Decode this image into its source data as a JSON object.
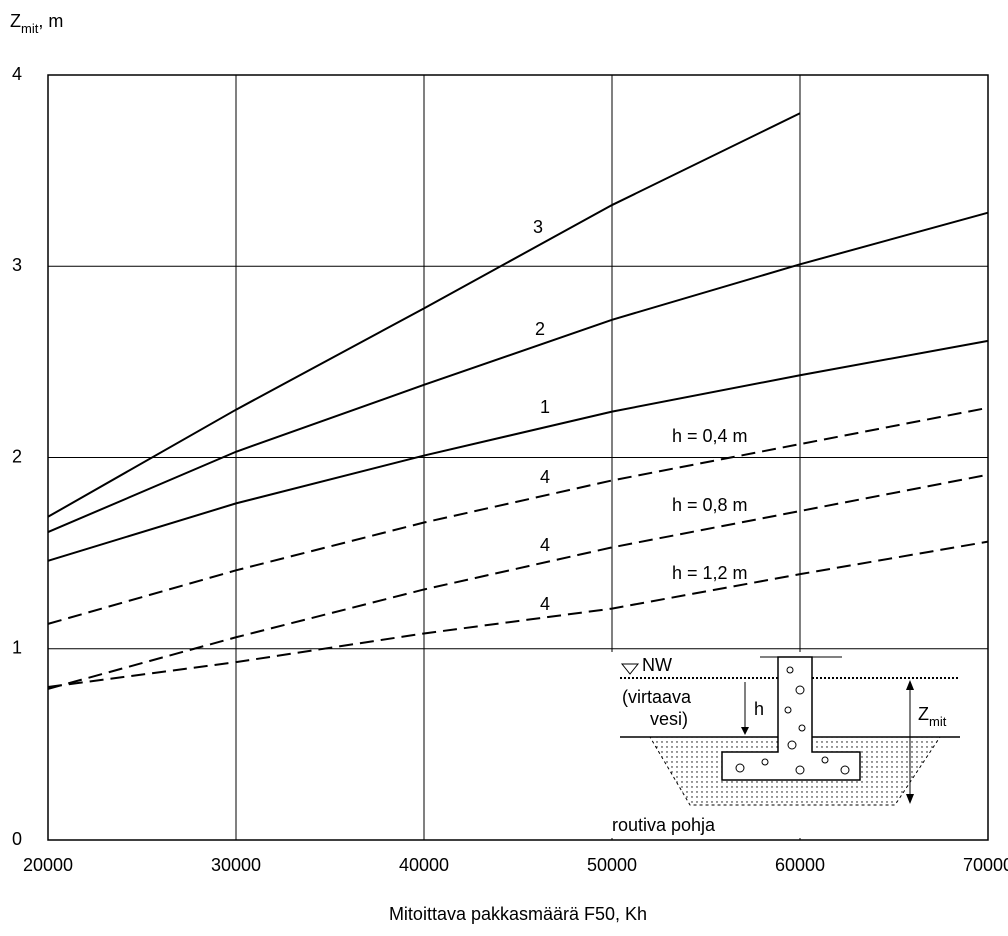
{
  "chart_data": {
    "type": "line",
    "x_label": "Mitoittava pakkasmäärä F50, Kh",
    "y_label": {
      "main": "Z",
      "sub": "mit",
      "unit": ", m"
    },
    "x": [
      20000,
      30000,
      40000,
      50000,
      60000,
      70000
    ],
    "series": [
      {
        "name": "3",
        "color": "#000000",
        "dashed": false,
        "values": [
          1.69,
          2.25,
          2.78,
          3.32,
          3.8,
          null
        ]
      },
      {
        "name": "2",
        "color": "#000000",
        "dashed": false,
        "values": [
          1.61,
          2.03,
          2.38,
          2.72,
          3.01,
          3.28
        ]
      },
      {
        "name": "1",
        "color": "#000000",
        "dashed": false,
        "values": [
          1.46,
          1.76,
          2.01,
          2.24,
          2.43,
          2.61
        ]
      },
      {
        "name": "4",
        "label": "h = 0,4 m",
        "color": "#000000",
        "dashed": true,
        "values": [
          1.13,
          1.41,
          1.66,
          1.88,
          2.07,
          2.26
        ]
      },
      {
        "name": "4",
        "label": "h = 0,8 m",
        "color": "#000000",
        "dashed": true,
        "values": [
          0.79,
          1.06,
          1.31,
          1.53,
          1.72,
          1.91
        ]
      },
      {
        "name": "4",
        "label": "h = 1,2 m",
        "color": "#000000",
        "dashed": true,
        "values": [
          0.8,
          0.93,
          1.08,
          1.21,
          1.39,
          1.56
        ]
      }
    ],
    "xlim": [
      20000,
      70000
    ],
    "xticks": [
      20000,
      30000,
      40000,
      50000,
      60000,
      70000
    ],
    "ylim": [
      0,
      4
    ],
    "yticks": [
      0,
      1,
      2,
      3,
      4
    ],
    "grid": true,
    "inset": {
      "nw": "NW",
      "water_1": "(virtaava",
      "water_2": "vesi)",
      "h": "h",
      "z_main": "Z",
      "z_sub": "mit",
      "soil": "routiva pohja"
    }
  }
}
